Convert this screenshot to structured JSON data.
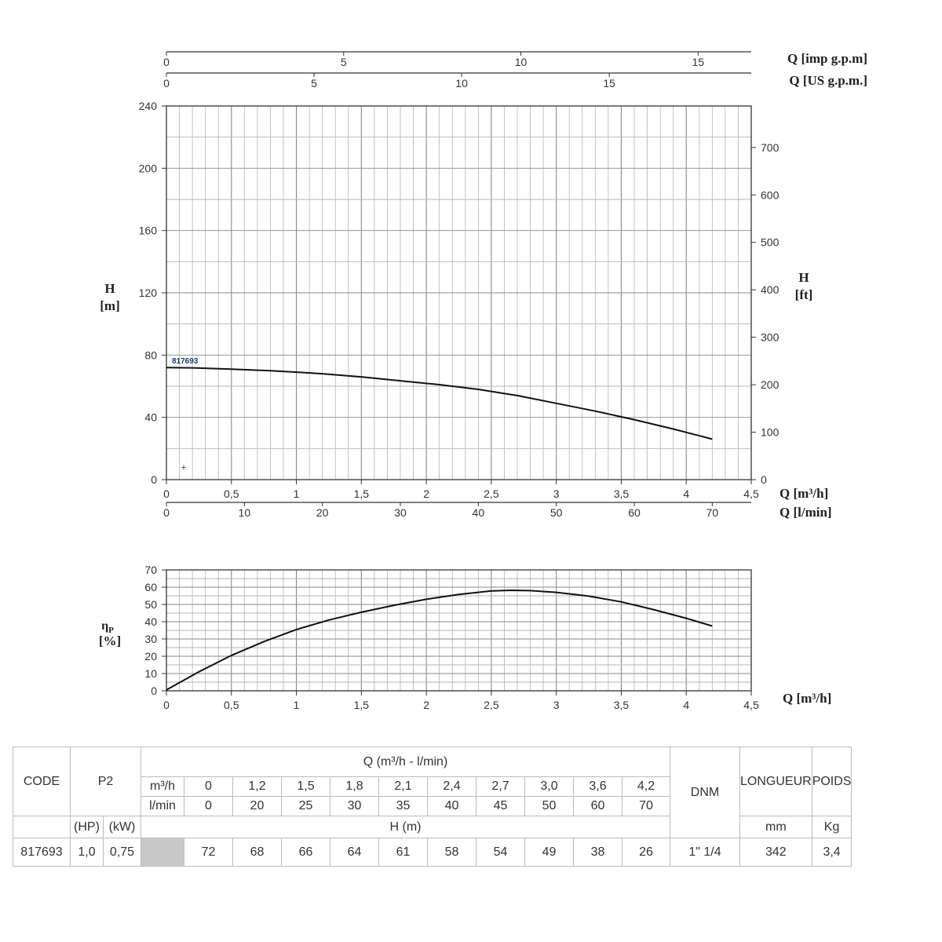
{
  "chart_data": [
    {
      "type": "line",
      "xlabel": "Q [m³/h]",
      "ylabel": "H [m]",
      "y2label": "H [ft]",
      "xlim": [
        0,
        4.5
      ],
      "ylim": [
        0,
        240
      ],
      "y2lim": [
        0,
        787.4
      ],
      "grid": true,
      "x_ticks": [
        0,
        0.5,
        1,
        1.5,
        2,
        2.5,
        3,
        3.5,
        4,
        4.5
      ],
      "x_tick_labels": [
        "0",
        "0,5",
        "1",
        "1,5",
        "2",
        "2,5",
        "3",
        "3,5",
        "4",
        "4,5"
      ],
      "y_ticks": [
        0,
        40,
        80,
        120,
        160,
        200,
        240
      ],
      "y_tick_labels": [
        "0",
        "40",
        "80",
        "120",
        "160",
        "200",
        "240"
      ],
      "y2_ticks": [
        0,
        100,
        200,
        300,
        400,
        500,
        600,
        700
      ],
      "y2_tick_labels": [
        "0",
        "100",
        "200",
        "300",
        "400",
        "500",
        "600",
        "700"
      ],
      "lmin_axis": {
        "label": "Q [l/min]",
        "ticks": [
          0,
          10,
          20,
          30,
          40,
          50,
          60,
          70
        ],
        "max": 75
      },
      "usgpm_axis": {
        "label": "Q [US g.p.m.]",
        "ticks": [
          0,
          5,
          10,
          15
        ],
        "max": 19.81
      },
      "impgpm_axis": {
        "label": "Q [imp g.p.m]",
        "ticks": [
          0,
          5,
          10,
          15
        ],
        "max": 16.5
      },
      "series": [
        {
          "name": "817693",
          "x": [
            0,
            0.2,
            0.5,
            0.8,
            1.0,
            1.2,
            1.5,
            1.8,
            2.0,
            2.1,
            2.4,
            2.7,
            3.0,
            3.3,
            3.6,
            3.9,
            4.2
          ],
          "y": [
            72,
            71.8,
            71,
            70,
            69,
            68,
            66,
            63.5,
            61.8,
            61,
            58,
            54,
            49,
            44,
            38.5,
            32.5,
            26
          ]
        }
      ]
    },
    {
      "type": "line",
      "xlabel": "Q [m³/h]",
      "ylabel_main": "η",
      "ylabel_sub": "P",
      "ylabel_unit": "[%]",
      "xlim": [
        0,
        4.5
      ],
      "ylim": [
        0,
        70
      ],
      "grid": true,
      "x_ticks": [
        0,
        0.5,
        1,
        1.5,
        2,
        2.5,
        3,
        3.5,
        4,
        4.5
      ],
      "x_tick_labels": [
        "0",
        "0,5",
        "1",
        "1,5",
        "2",
        "2,5",
        "3",
        "3,5",
        "4",
        "4,5"
      ],
      "y_ticks": [
        0,
        10,
        20,
        30,
        40,
        50,
        60,
        70
      ],
      "y_tick_labels": [
        "0",
        "10",
        "20",
        "30",
        "40",
        "50",
        "60",
        "70"
      ],
      "series": [
        {
          "name": "",
          "x": [
            0,
            0.25,
            0.5,
            0.75,
            1.0,
            1.25,
            1.5,
            1.75,
            2.0,
            2.25,
            2.5,
            2.65,
            2.8,
            3.0,
            3.25,
            3.5,
            3.75,
            4.0,
            4.2
          ],
          "y": [
            0.5,
            11,
            20.5,
            28.5,
            35.5,
            41,
            45.5,
            49.5,
            53,
            55.8,
            57.8,
            58.2,
            58,
            57,
            54.8,
            51.5,
            47,
            42,
            37.5
          ]
        }
      ]
    }
  ],
  "table": {
    "code_label": "CODE",
    "p2_label": "P2",
    "q_header": "Q (m³/h - l/min)",
    "m3h_label": "m³/h",
    "lmin_label": "l/min",
    "m3h_values": [
      "0",
      "1,2",
      "1,5",
      "1,8",
      "2,1",
      "2,4",
      "2,7",
      "3,0",
      "3,6",
      "4,2"
    ],
    "lmin_values": [
      "0",
      "20",
      "25",
      "30",
      "35",
      "40",
      "45",
      "50",
      "60",
      "70"
    ],
    "dnm_label": "DNM",
    "longueur_label": "LONGUEUR",
    "poids_label": "POIDS",
    "hp_label": "(HP)",
    "kw_label": "(kW)",
    "h_label": "H (m)",
    "mm_label": "mm",
    "kg_label": "Kg",
    "row": {
      "code": "817693",
      "hp": "1,0",
      "kw": "0,75",
      "h_values": [
        "72",
        "68",
        "66",
        "64",
        "61",
        "58",
        "54",
        "49",
        "38",
        "26"
      ],
      "dnm": "1\" 1/4",
      "longueur": "342",
      "poids": "3,4"
    }
  }
}
